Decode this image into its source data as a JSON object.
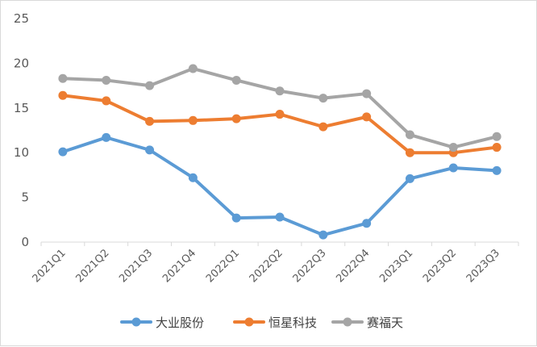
{
  "chart_data": {
    "type": "line",
    "title": "",
    "xlabel": "",
    "ylabel": "",
    "ylim": [
      0,
      25
    ],
    "yticks": [
      0,
      5,
      10,
      15,
      20,
      25
    ],
    "grid": false,
    "legend_position": "bottom",
    "categories": [
      "2021Q1",
      "2021Q2",
      "2021Q3",
      "2021Q4",
      "2022Q1",
      "2022Q2",
      "2022Q3",
      "2022Q4",
      "2023Q1",
      "2023Q2",
      "2023Q3"
    ],
    "series": [
      {
        "name": "大业股份",
        "color": "#5b9bd5",
        "values": [
          10.1,
          11.7,
          10.3,
          7.2,
          2.7,
          2.8,
          0.8,
          2.1,
          7.1,
          8.3,
          8.0
        ]
      },
      {
        "name": "恒星科技",
        "color": "#ed7d31",
        "values": [
          16.4,
          15.8,
          13.5,
          13.6,
          13.8,
          14.3,
          12.9,
          14.0,
          10.0,
          10.0,
          10.6
        ]
      },
      {
        "name": "赛福天",
        "color": "#a5a5a5",
        "values": [
          18.3,
          18.1,
          17.5,
          19.4,
          18.1,
          16.9,
          16.1,
          16.6,
          12.0,
          10.6,
          11.8
        ]
      }
    ]
  }
}
